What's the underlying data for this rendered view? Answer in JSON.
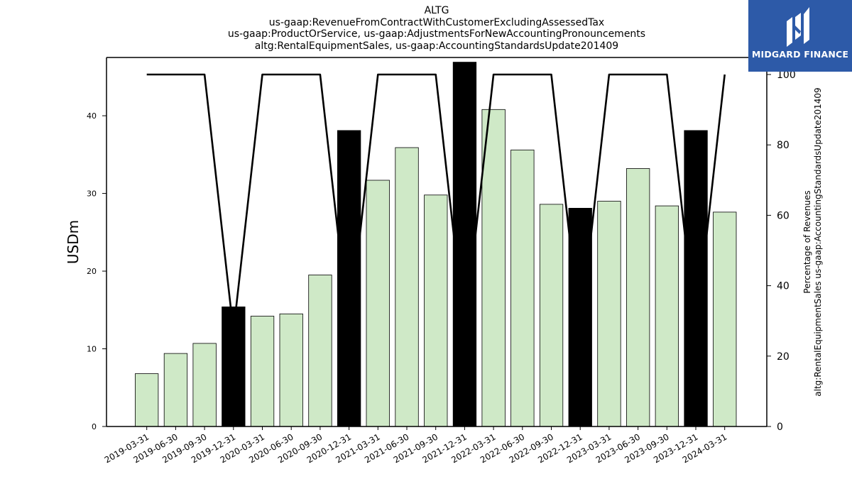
{
  "chart_data": {
    "type": "bar",
    "title": "ALTG",
    "subtitle_lines": [
      "us-gaap:RevenueFromContractWithCustomerExcludingAssessedTax",
      "us-gaap:ProductOrService, us-gaap:AdjustmentsForNewAccountingPronouncements",
      "altg:RentalEquipmentSales, us-gaap:AccountingStandardsUpdate201409"
    ],
    "ylabel": "USDm",
    "y2label_lines": [
      "Percentage of Revenues",
      "altg:RentalEquipmentSales us-gaap:AccountingStandardsUpdate201409"
    ],
    "ylim": [
      0,
      47.5
    ],
    "y2lim": [
      0,
      100
    ],
    "yticks": [
      0,
      10,
      20,
      30,
      40
    ],
    "y2ticks": [
      0,
      20,
      40,
      60,
      80,
      100
    ],
    "grid": false,
    "categories": [
      "2019-03-31",
      "2019-06-30",
      "2019-09-30",
      "2019-12-31",
      "2020-03-31",
      "2020-06-30",
      "2020-09-30",
      "2020-12-31",
      "2021-03-31",
      "2021-06-30",
      "2021-09-30",
      "2021-12-31",
      "2022-03-31",
      "2022-06-30",
      "2022-09-30",
      "2022-12-31",
      "2023-03-31",
      "2023-06-30",
      "2023-09-30",
      "2023-12-31",
      "2024-03-31"
    ],
    "values": [
      6.8,
      9.4,
      10.7,
      15.4,
      14.2,
      14.5,
      19.5,
      38.1,
      31.7,
      35.9,
      29.8,
      46.9,
      40.8,
      35.6,
      28.6,
      28.1,
      29.0,
      33.2,
      28.4,
      38.1,
      27.6
    ],
    "bar_highlight": [
      false,
      false,
      false,
      true,
      false,
      false,
      false,
      true,
      false,
      false,
      false,
      true,
      false,
      false,
      false,
      true,
      false,
      false,
      false,
      true,
      false
    ],
    "line_series": {
      "axis": "right",
      "values": [
        100,
        100,
        100,
        27,
        100,
        100,
        100,
        27,
        100,
        100,
        100,
        27,
        100,
        100,
        100,
        27,
        100,
        100,
        100,
        27,
        100
      ]
    },
    "colors": {
      "bar": "#cfe9c7",
      "bar_highlight": "#000000",
      "line": "#000000"
    }
  },
  "logo": {
    "text": "MIDGARD FINANCE",
    "color": "#2d5aa8"
  }
}
